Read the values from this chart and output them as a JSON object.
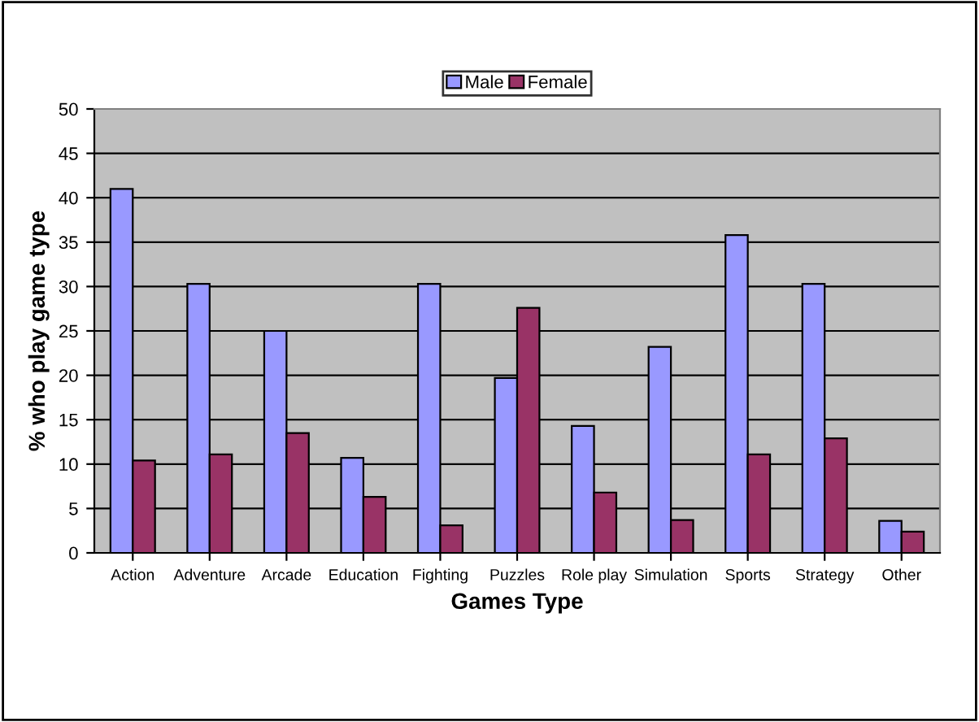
{
  "chart_data": {
    "type": "bar",
    "xlabel": "Games Type",
    "ylabel": "% who play game type",
    "categories": [
      "Action",
      "Adventure",
      "Arcade",
      "Education",
      "Fighting",
      "Puzzles",
      "Role play",
      "Simulation",
      "Sports",
      "Strategy",
      "Other"
    ],
    "series": [
      {
        "name": "Male",
        "color": "#9999ff",
        "values": [
          41,
          30.3,
          25,
          10.7,
          30.3,
          19.7,
          14.3,
          23.2,
          35.8,
          30.3,
          3.6
        ]
      },
      {
        "name": "Female",
        "color": "#993366",
        "values": [
          10.4,
          11.1,
          13.5,
          6.3,
          3.1,
          27.6,
          6.8,
          3.7,
          11.1,
          12.9,
          2.4
        ]
      }
    ],
    "ylim": [
      0,
      50
    ],
    "yticks": [
      0,
      5,
      10,
      15,
      20,
      25,
      30,
      35,
      40,
      45,
      50
    ],
    "grid": "y",
    "legend": "top"
  }
}
